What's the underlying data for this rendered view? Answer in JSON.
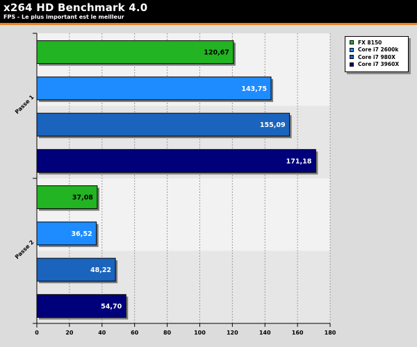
{
  "header": {
    "title": "x264 HD Benchmark 4.0",
    "subtitle": "FPS - Le plus important est le meilleur"
  },
  "colors": {
    "header_bg": "#000000",
    "accent_line": "#f07f1c",
    "chart_bg": "#dcdcdc",
    "plot_bg_light": "#f2f2f2",
    "plot_bg_shade": "#e6e6e6"
  },
  "legend": [
    {
      "label": "FX 8150",
      "color": "#22b422"
    },
    {
      "label": "Core i7 2600k",
      "color": "#1e8cff"
    },
    {
      "label": "Core i7 980X",
      "color": "#1a64be"
    },
    {
      "label": "Core i7 3960X",
      "color": "#00007a"
    }
  ],
  "chart_data": {
    "type": "bar",
    "orientation": "horizontal",
    "title": "x264 HD Benchmark 4.0",
    "subtitle": "FPS - Le plus important est le meilleur",
    "categories": [
      "Passe 1",
      "Passe 2"
    ],
    "series": [
      {
        "name": "FX 8150",
        "color": "#22b422",
        "values": [
          120.67,
          37.08
        ],
        "labels": [
          "120,67",
          "37,08"
        ]
      },
      {
        "name": "Core i7 2600k",
        "color": "#1e8cff",
        "values": [
          143.75,
          36.52
        ],
        "labels": [
          "143,75",
          "36,52"
        ]
      },
      {
        "name": "Core i7 980X",
        "color": "#1a64be",
        "values": [
          155.09,
          48.22
        ],
        "labels": [
          "155,09",
          "48,22"
        ]
      },
      {
        "name": "Core i7 3960X",
        "color": "#00007a",
        "values": [
          171.18,
          54.7
        ],
        "labels": [
          "171,18",
          "54,70"
        ]
      }
    ],
    "xlim": [
      0,
      180
    ],
    "xticks": [
      0,
      20,
      40,
      60,
      80,
      100,
      120,
      140,
      160,
      180
    ],
    "grid": true,
    "legend_position": "top-right"
  }
}
